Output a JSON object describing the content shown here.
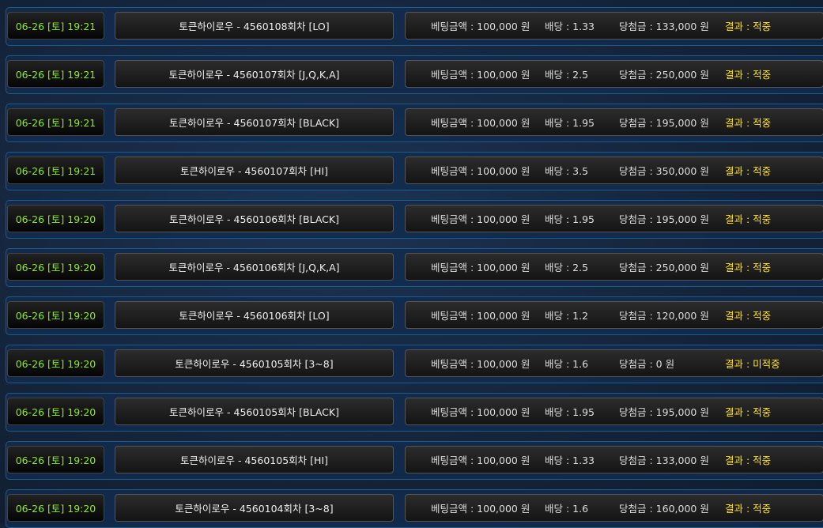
{
  "labels": {
    "bet": "베팅금액 : ",
    "odds": "배당 : ",
    "win": "당첨금 : ",
    "result": "결과 : ",
    "currency": " 원"
  },
  "colors": {
    "date": "#8aee1a",
    "result": "#ffe21a"
  },
  "rows": [
    {
      "date": "06-26 [토] 19:21",
      "title": "토큰하이로우 - 4560108회차 [LO]",
      "bet": "100,000",
      "odds": "1.33",
      "win": "133,000",
      "result": "적중"
    },
    {
      "date": "06-26 [토] 19:21",
      "title": "토큰하이로우 - 4560107회차 [J,Q,K,A]",
      "bet": "100,000",
      "odds": "2.5",
      "win": "250,000",
      "result": "적중"
    },
    {
      "date": "06-26 [토] 19:21",
      "title": "토큰하이로우 - 4560107회차 [BLACK]",
      "bet": "100,000",
      "odds": "1.95",
      "win": "195,000",
      "result": "적중"
    },
    {
      "date": "06-26 [토] 19:21",
      "title": "토큰하이로우 - 4560107회차 [HI]",
      "bet": "100,000",
      "odds": "3.5",
      "win": "350,000",
      "result": "적중"
    },
    {
      "date": "06-26 [토] 19:20",
      "title": "토큰하이로우 - 4560106회차 [BLACK]",
      "bet": "100,000",
      "odds": "1.95",
      "win": "195,000",
      "result": "적중"
    },
    {
      "date": "06-26 [토] 19:20",
      "title": "토큰하이로우 - 4560106회차 [J,Q,K,A]",
      "bet": "100,000",
      "odds": "2.5",
      "win": "250,000",
      "result": "적중"
    },
    {
      "date": "06-26 [토] 19:20",
      "title": "토큰하이로우 - 4560106회차 [LO]",
      "bet": "100,000",
      "odds": "1.2",
      "win": "120,000",
      "result": "적중"
    },
    {
      "date": "06-26 [토] 19:20",
      "title": "토큰하이로우 - 4560105회차 [3~8]",
      "bet": "100,000",
      "odds": "1.6",
      "win": "0",
      "result": "미적중"
    },
    {
      "date": "06-26 [토] 19:20",
      "title": "토큰하이로우 - 4560105회차 [BLACK]",
      "bet": "100,000",
      "odds": "1.95",
      "win": "195,000",
      "result": "적중"
    },
    {
      "date": "06-26 [토] 19:20",
      "title": "토큰하이로우 - 4560105회차 [HI]",
      "bet": "100,000",
      "odds": "1.33",
      "win": "133,000",
      "result": "적중"
    },
    {
      "date": "06-26 [토] 19:20",
      "title": "토큰하이로우 - 4560104회차 [3~8]",
      "bet": "100,000",
      "odds": "1.6",
      "win": "160,000",
      "result": "적중"
    }
  ]
}
